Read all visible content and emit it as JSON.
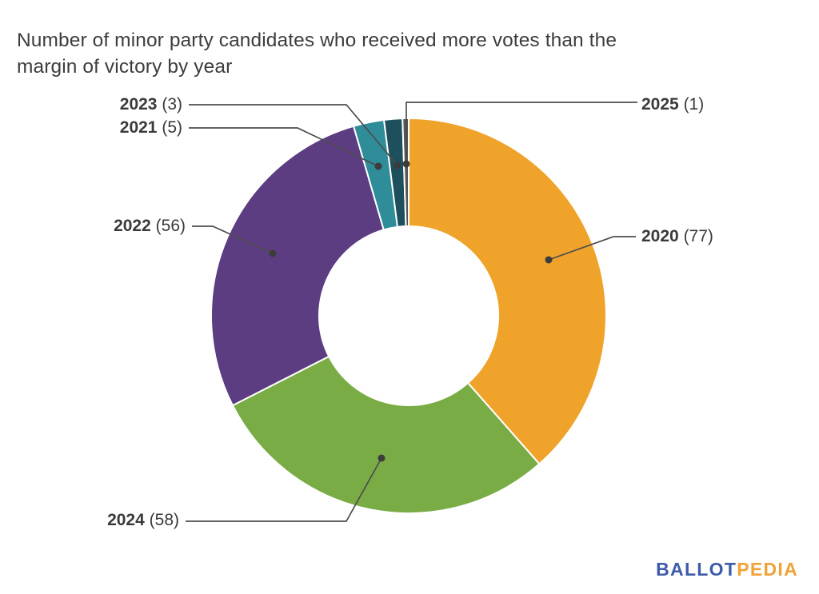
{
  "title": {
    "line1": "Number of minor party candidates who received more votes than the",
    "line2": "margin of victory by year"
  },
  "chart_data": {
    "type": "pie",
    "subtype": "donut",
    "title": "Number of minor party candidates who received more votes than the margin of victory by year",
    "total": 200,
    "direction": "clockwise",
    "start_angle_deg": 0,
    "inner_radius_ratio": 0.45,
    "legend": "none",
    "label_format": "year (value)",
    "segments": [
      {
        "label": "2020",
        "value": 77,
        "color": "#F0A32B"
      },
      {
        "label": "2024",
        "value": 58,
        "color": "#7AAC45"
      },
      {
        "label": "2022",
        "value": 56,
        "color": "#5D3D82"
      },
      {
        "label": "2021",
        "value": 5,
        "color": "#2F8C99"
      },
      {
        "label": "2023",
        "value": 3,
        "color": "#1E4F5C"
      },
      {
        "label": "2025",
        "value": 1,
        "color": "#56575B"
      }
    ]
  },
  "callouts": [
    {
      "year": "2023",
      "count": "(3)"
    },
    {
      "year": "2021",
      "count": "(5)"
    },
    {
      "year": "2022",
      "count": "(56)"
    },
    {
      "year": "2024",
      "count": "(58)"
    },
    {
      "year": "2025",
      "count": "(1)"
    },
    {
      "year": "2020",
      "count": "(77)"
    }
  ],
  "logo": {
    "part1": "BALLOT",
    "part2": "PEDIA",
    "part1_color": "#3D5BA9",
    "part2_color": "#F0A236"
  },
  "colors": {
    "leader_line": "#4d4d4d",
    "leader_dot": "#3c3c3c",
    "text": "#3a3a3a",
    "segment_gap": "#ffffff"
  }
}
